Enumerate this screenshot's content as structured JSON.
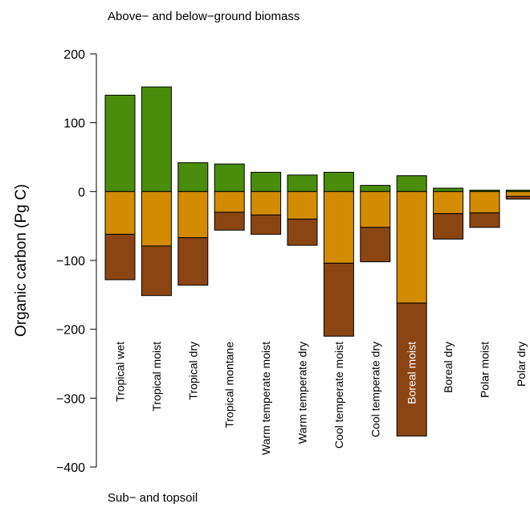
{
  "chart_data": {
    "type": "bar",
    "stacked": true,
    "title": "",
    "xlabel": "",
    "ylabel": "Organic carbon (Pg C)",
    "ylim": [
      -400,
      200
    ],
    "yticks": [
      200,
      100,
      0,
      -100,
      -200,
      -300,
      -400
    ],
    "grid": false,
    "legend": "none",
    "annotations": {
      "top": "Above− and below−ground biomass",
      "bottom": "Sub− and topsoil"
    },
    "categories": [
      "Tropical wet",
      "Tropical moist",
      "Tropical dry",
      "Tropical montane",
      "Warm temperate moist",
      "Warm temperate dry",
      "Cool temperate moist",
      "Cool temperate dry",
      "Boreal moist",
      "Boreal dry",
      "Polar moist",
      "Polar dry"
    ],
    "highlight_category": "Boreal moist",
    "series": [
      {
        "color": "#4a8c0b",
        "values": [
          140,
          152,
          42,
          40,
          28,
          24,
          28,
          9,
          23,
          5,
          2,
          2
        ]
      },
      {
        "color": "#d38b00",
        "values": [
          -62,
          -79,
          -67,
          -30,
          -34,
          -40,
          -104,
          -52,
          -162,
          -32,
          -31,
          -7
        ]
      },
      {
        "color": "#8b4513",
        "values": [
          -66,
          -72,
          -69,
          -26,
          -28,
          -38,
          -106,
          -50,
          -193,
          -37,
          -21,
          -4
        ]
      }
    ]
  }
}
